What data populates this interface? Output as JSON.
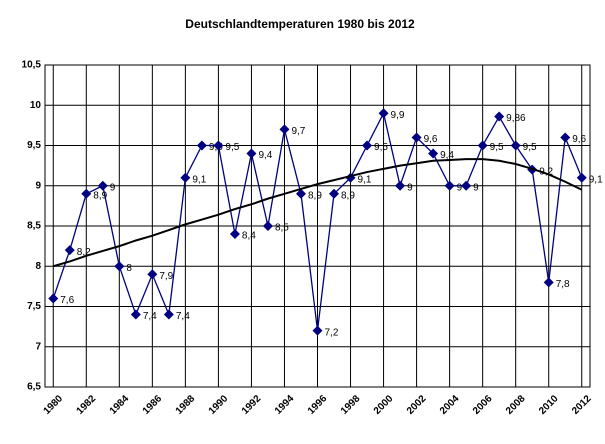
{
  "chart_data": {
    "type": "line",
    "title": "Deutschlandtemperaturen 1980 bis 2012",
    "x": [
      1980,
      1981,
      1982,
      1983,
      1984,
      1985,
      1986,
      1987,
      1988,
      1989,
      1990,
      1991,
      1992,
      1993,
      1994,
      1995,
      1996,
      1997,
      1998,
      1999,
      2000,
      2001,
      2002,
      2003,
      2004,
      2005,
      2006,
      2007,
      2008,
      2009,
      2010,
      2011,
      2012
    ],
    "series": [
      {
        "color": "#000080",
        "values": [
          7.6,
          8.2,
          8.9,
          9,
          8,
          7.4,
          7.9,
          7.4,
          9.1,
          9.5,
          9.5,
          8.4,
          9.4,
          8.5,
          9.7,
          8.9,
          7.2,
          8.9,
          9.1,
          9.5,
          9.9,
          9,
          9.6,
          9.4,
          9,
          9,
          9.5,
          9.86,
          9.5,
          9.2,
          7.8,
          9.6,
          9.1
        ],
        "value_labels": [
          "7,6",
          "8,2",
          "8,9",
          "9",
          "8",
          "7,4",
          "7,9",
          "7,4",
          "9,1",
          "9,5",
          "9,5",
          "8,4",
          "9,4",
          "8,5",
          "9,7",
          "8,9",
          "7,2",
          "8,9",
          "9,1",
          "9,5",
          "9,9",
          "9",
          "9,6",
          "9,4",
          "9",
          "9",
          "9,5",
          "9,86",
          "9,5",
          "9,2",
          "7,8",
          "9,6",
          "9,1"
        ]
      }
    ],
    "trend": {
      "color": "#000000",
      "values": [
        8.0,
        8.06,
        8.13,
        8.19,
        8.25,
        8.32,
        8.38,
        8.45,
        8.52,
        8.58,
        8.64,
        8.71,
        8.77,
        8.84,
        8.9,
        8.96,
        9.02,
        9.07,
        9.12,
        9.17,
        9.21,
        9.25,
        9.28,
        9.31,
        9.32,
        9.33,
        9.33,
        9.31,
        9.27,
        9.21,
        9.14,
        9.05,
        8.95
      ]
    },
    "xlim": [
      1979.5,
      2012.5
    ],
    "xticks": [
      1980,
      1982,
      1984,
      1986,
      1988,
      1990,
      1992,
      1994,
      1996,
      1998,
      2000,
      2002,
      2004,
      2006,
      2008,
      2010,
      2012
    ],
    "ylim": [
      6.5,
      10.5
    ],
    "yticks": [
      {
        "value": 6.5,
        "label": "6,5"
      },
      7,
      {
        "value": 7.5,
        "label": "7,5"
      },
      8,
      {
        "value": 8.5,
        "label": "8,5"
      },
      9,
      {
        "value": 9.5,
        "label": "9,5"
      },
      10,
      {
        "value": 10.5,
        "label": "10,5"
      }
    ],
    "grid": true
  }
}
